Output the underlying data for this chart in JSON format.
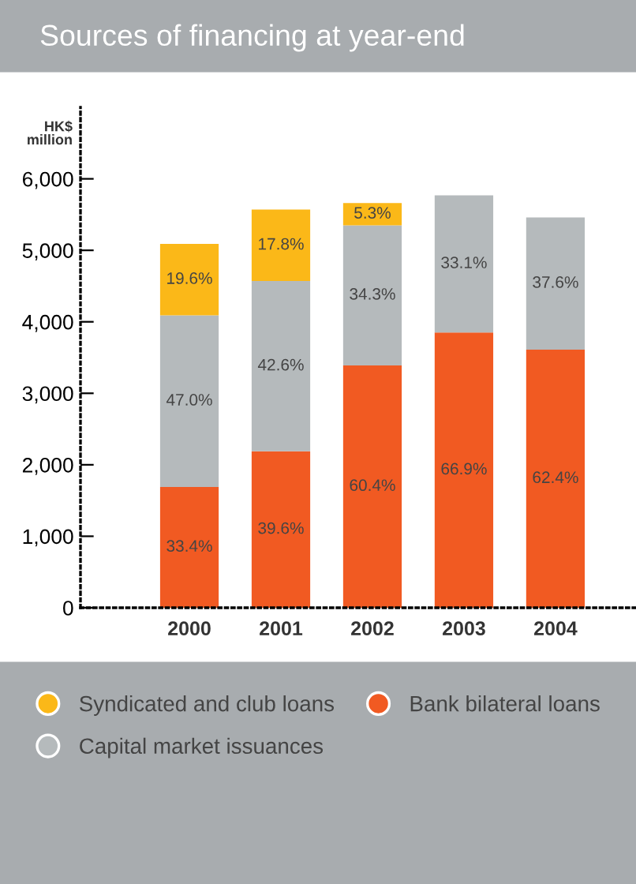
{
  "chart_data": {
    "type": "bar",
    "title": "Sources of financing at year-end",
    "ylabel": "HK$\nmillion",
    "categories": [
      "2000",
      "2001",
      "2002",
      "2003",
      "2004"
    ],
    "stacked": true,
    "series": [
      {
        "name": "Bank bilateral loans",
        "color": "#f15a22",
        "values": [
          1690,
          2190,
          3390,
          3850,
          3610
        ]
      },
      {
        "name": "Capital market issuances",
        "color": "#b5babc",
        "values": [
          2400,
          2380,
          1960,
          1920,
          1850
        ]
      },
      {
        "name": "Syndicated and club loans",
        "color": "#fbb818",
        "values": [
          1000,
          1000,
          310,
          null,
          null
        ]
      }
    ],
    "annotations": [
      "33.4%",
      "39.6%",
      "60.4%",
      "66.9%",
      "62.4%",
      "47.0%",
      "42.6%",
      "34.3%",
      "33.1%",
      "37.6%",
      "19.6%",
      "17.8%",
      "5.3%"
    ],
    "ylim": [
      0,
      7000
    ],
    "yticks": [
      {
        "value": 0,
        "label": "0"
      },
      {
        "value": 1000,
        "label": "1,000"
      },
      {
        "value": 2000,
        "label": "2,000"
      },
      {
        "value": 3000,
        "label": "3,000"
      },
      {
        "value": 4000,
        "label": "4,000"
      },
      {
        "value": 5000,
        "label": "5,000"
      },
      {
        "value": 6000,
        "label": "6,000"
      }
    ],
    "grid": false,
    "legend": "bottom"
  }
}
